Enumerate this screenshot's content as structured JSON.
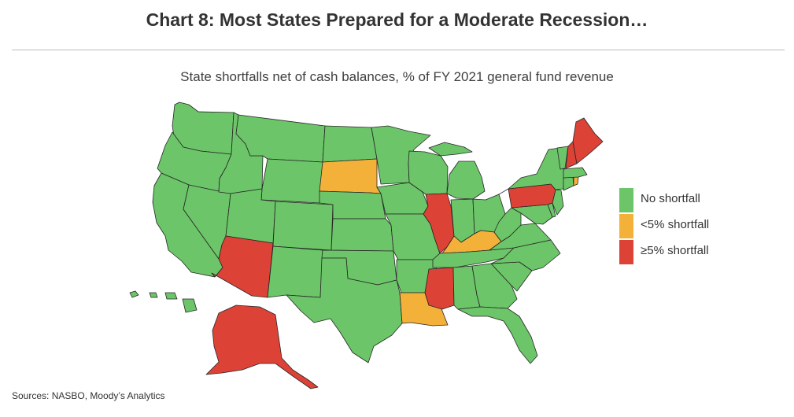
{
  "header": {
    "title": "Chart 8: Most States Prepared for a Moderate Recession…",
    "subtitle": "State shortfalls net of cash balances, % of FY 2021 general fund revenue"
  },
  "colors": {
    "no_shortfall": "#6cc568",
    "lt5": "#f3b13a",
    "ge5": "#dd4237",
    "rule": "#bcbcbc"
  },
  "legend": [
    {
      "key": "no_shortfall",
      "label": "No shortfall"
    },
    {
      "key": "lt5",
      "label": "<5% shortfall"
    },
    {
      "key": "ge5",
      "label": "≥5% shortfall"
    }
  ],
  "states": {
    "WA": "no_shortfall",
    "OR": "no_shortfall",
    "CA": "no_shortfall",
    "NV": "no_shortfall",
    "ID": "no_shortfall",
    "MT": "no_shortfall",
    "WY": "no_shortfall",
    "UT": "no_shortfall",
    "AZ": "ge5",
    "CO": "no_shortfall",
    "NM": "no_shortfall",
    "ND": "no_shortfall",
    "SD": "lt5",
    "NE": "no_shortfall",
    "KS": "no_shortfall",
    "OK": "no_shortfall",
    "TX": "no_shortfall",
    "MN": "no_shortfall",
    "IA": "no_shortfall",
    "MO": "no_shortfall",
    "AR": "no_shortfall",
    "LA": "lt5",
    "WI": "no_shortfall",
    "IL": "ge5",
    "MI": "no_shortfall",
    "IN": "no_shortfall",
    "OH": "no_shortfall",
    "KY": "lt5",
    "TN": "no_shortfall",
    "MS": "ge5",
    "AL": "no_shortfall",
    "GA": "no_shortfall",
    "FL": "no_shortfall",
    "SC": "no_shortfall",
    "NC": "no_shortfall",
    "VA": "no_shortfall",
    "WV": "no_shortfall",
    "MD": "no_shortfall",
    "DE": "no_shortfall",
    "NJ": "no_shortfall",
    "PA": "ge5",
    "NY": "no_shortfall",
    "CT": "no_shortfall",
    "RI": "lt5",
    "MA": "no_shortfall",
    "VT": "no_shortfall",
    "NH": "ge5",
    "ME": "ge5",
    "AK": "ge5",
    "HI": "no_shortfall"
  },
  "footer": {
    "source": "Sources: NASBO, Moody’s Analytics"
  }
}
